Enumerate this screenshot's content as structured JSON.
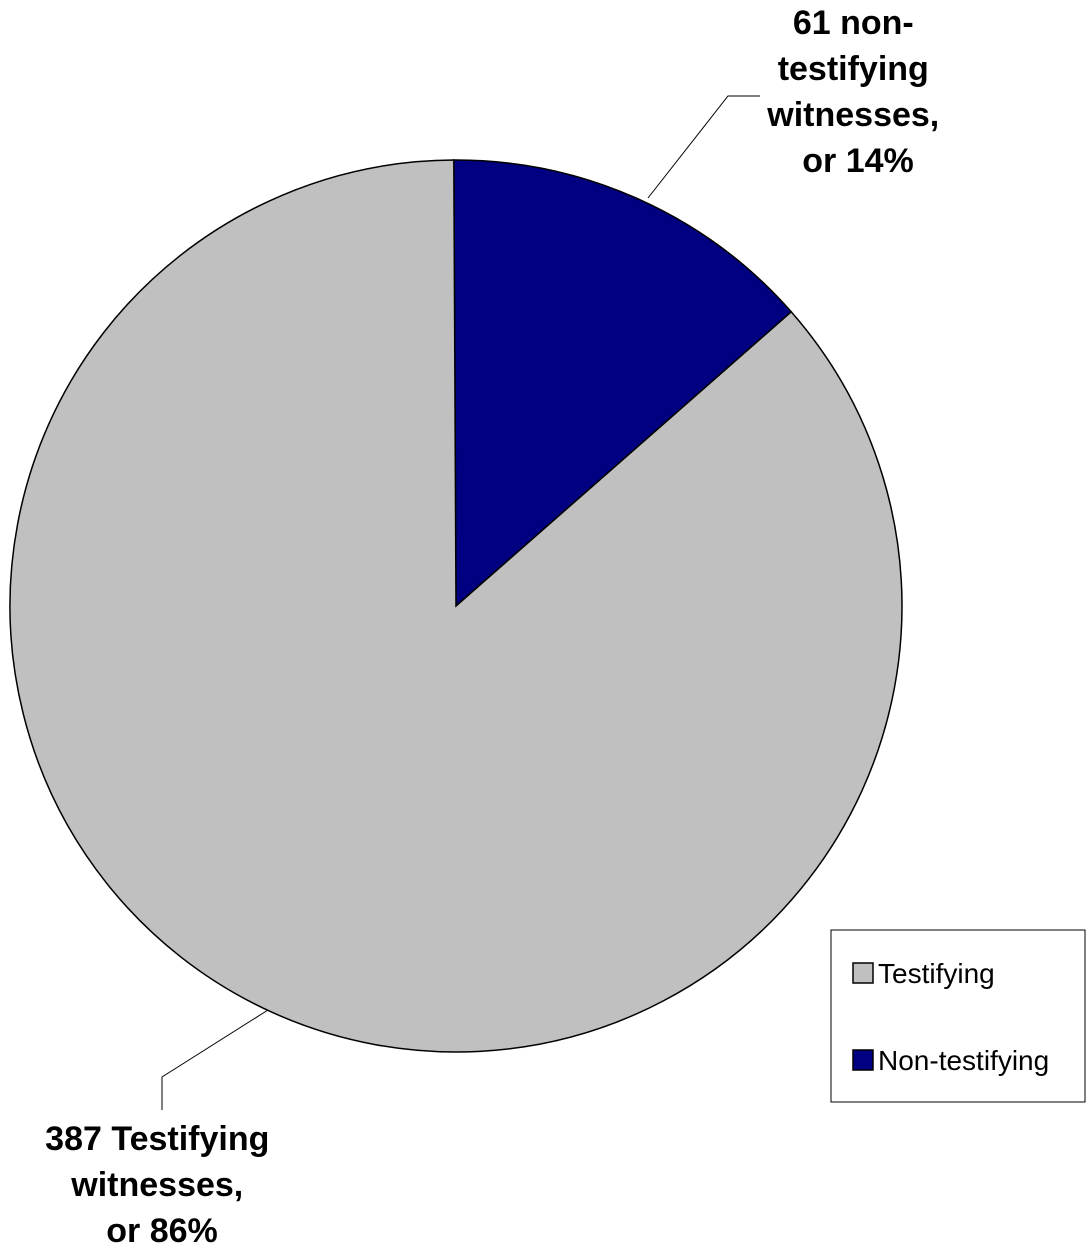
{
  "chart_data": {
    "type": "pie",
    "categories": [
      "Testifying",
      "Non-testifying"
    ],
    "values": [
      387,
      61
    ],
    "percentages": [
      86,
      14
    ],
    "colors": [
      "#c0c0c0",
      "#000080"
    ],
    "data_labels": [
      [
        "387 Testifying",
        "witnesses,",
        "or 86%"
      ],
      [
        "61 non-",
        "testifying",
        "witnesses,",
        "or 14%"
      ]
    ],
    "legend": {
      "placement": "bottom-right",
      "entries": [
        "Testifying",
        "Non-testifying"
      ]
    }
  }
}
